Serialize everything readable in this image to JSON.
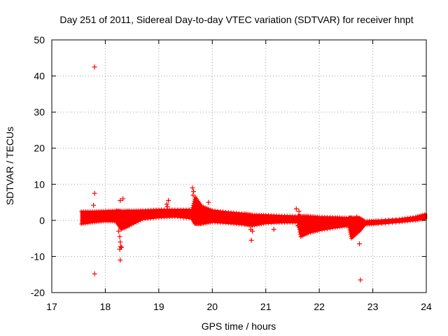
{
  "chart_data": {
    "type": "scatter",
    "title": "Day 251 of 2011, Sidereal Day-to-day VTEC variation (SDTVAR) for receiver hnpt",
    "xlabel": "GPS time / hours",
    "ylabel": "SDTVAR / TECUs",
    "xlim": [
      17,
      24
    ],
    "ylim": [
      -20,
      50
    ],
    "xticks": [
      17,
      18,
      19,
      20,
      21,
      22,
      23,
      24
    ],
    "yticks": [
      -20,
      -10,
      0,
      10,
      20,
      30,
      40,
      50
    ],
    "xtick_labels": [
      "17",
      "18",
      "19",
      "20",
      "21",
      "22",
      "23",
      "24"
    ],
    "ytick_labels": [
      "-20",
      "-10",
      "0",
      "10",
      "20",
      "30",
      "40",
      "50"
    ],
    "grid": true,
    "marker": "+",
    "color": "#ff0000",
    "series": [
      {
        "name": "SDTVAR",
        "band": [
          {
            "x": 17.55,
            "lo": -1.0,
            "hi": 2.5
          },
          {
            "x": 17.8,
            "lo": -0.5,
            "hi": 2.5
          },
          {
            "x": 18.0,
            "lo": -0.2,
            "hi": 2.6
          },
          {
            "x": 18.2,
            "lo": -0.3,
            "hi": 2.7
          },
          {
            "x": 18.3,
            "lo": -2.5,
            "hi": 2.6
          },
          {
            "x": 18.45,
            "lo": -1.5,
            "hi": 2.7
          },
          {
            "x": 18.7,
            "lo": 0.3,
            "hi": 2.8
          },
          {
            "x": 19.0,
            "lo": 0.8,
            "hi": 3.0
          },
          {
            "x": 19.3,
            "lo": 1.0,
            "hi": 3.0
          },
          {
            "x": 19.62,
            "lo": 0.5,
            "hi": 3.0
          },
          {
            "x": 19.68,
            "lo": -1.0,
            "hi": 6.5
          },
          {
            "x": 19.8,
            "lo": -1.0,
            "hi": 4.0
          },
          {
            "x": 20.0,
            "lo": -0.5,
            "hi": 2.8
          },
          {
            "x": 20.3,
            "lo": -0.8,
            "hi": 2.3
          },
          {
            "x": 20.6,
            "lo": -1.2,
            "hi": 1.9
          },
          {
            "x": 20.75,
            "lo": -1.5,
            "hi": 1.6
          },
          {
            "x": 21.0,
            "lo": -0.8,
            "hi": 1.5
          },
          {
            "x": 21.3,
            "lo": -0.6,
            "hi": 1.3
          },
          {
            "x": 21.6,
            "lo": -0.6,
            "hi": 1.2
          },
          {
            "x": 21.65,
            "lo": -4.5,
            "hi": 1.2
          },
          {
            "x": 21.8,
            "lo": -3.5,
            "hi": 1.2
          },
          {
            "x": 22.0,
            "lo": -2.8,
            "hi": 1.0
          },
          {
            "x": 22.3,
            "lo": -2.0,
            "hi": 0.9
          },
          {
            "x": 22.55,
            "lo": -1.5,
            "hi": 0.7
          },
          {
            "x": 22.6,
            "lo": -5.0,
            "hi": 0.8
          },
          {
            "x": 22.75,
            "lo": -3.0,
            "hi": 0.7
          },
          {
            "x": 22.85,
            "lo": -1.2,
            "hi": -0.2
          },
          {
            "x": 23.1,
            "lo": -1.0,
            "hi": 0.0
          },
          {
            "x": 23.5,
            "lo": -0.5,
            "hi": 0.4
          },
          {
            "x": 23.8,
            "lo": 0.0,
            "hi": 1.0
          },
          {
            "x": 24.0,
            "lo": 0.5,
            "hi": 1.8
          }
        ],
        "outliers": [
          {
            "x": 17.8,
            "y": 42.5
          },
          {
            "x": 17.8,
            "y": 7.5
          },
          {
            "x": 17.78,
            "y": 4.2
          },
          {
            "x": 17.8,
            "y": -14.8
          },
          {
            "x": 18.28,
            "y": 5.5
          },
          {
            "x": 18.33,
            "y": 6.0
          },
          {
            "x": 18.27,
            "y": -4.5
          },
          {
            "x": 18.28,
            "y": -6.0
          },
          {
            "x": 18.29,
            "y": -7.2
          },
          {
            "x": 18.27,
            "y": -8.0
          },
          {
            "x": 18.3,
            "y": -7.5
          },
          {
            "x": 18.28,
            "y": -11.0
          },
          {
            "x": 18.25,
            "y": -3.0
          },
          {
            "x": 19.15,
            "y": 4.5
          },
          {
            "x": 19.18,
            "y": 5.5
          },
          {
            "x": 19.16,
            "y": 3.8
          },
          {
            "x": 19.63,
            "y": 9.0
          },
          {
            "x": 19.65,
            "y": 8.0
          },
          {
            "x": 19.64,
            "y": 7.0
          },
          {
            "x": 19.93,
            "y": 5.0
          },
          {
            "x": 20.72,
            "y": -2.5
          },
          {
            "x": 20.75,
            "y": -3.0
          },
          {
            "x": 20.73,
            "y": -5.5
          },
          {
            "x": 21.15,
            "y": -2.5
          },
          {
            "x": 21.57,
            "y": 3.2
          },
          {
            "x": 21.62,
            "y": 2.5
          },
          {
            "x": 21.6,
            "y": -1.5
          },
          {
            "x": 22.7,
            "y": 1.0
          },
          {
            "x": 22.75,
            "y": -6.5
          },
          {
            "x": 22.77,
            "y": -16.5
          }
        ]
      }
    ]
  }
}
